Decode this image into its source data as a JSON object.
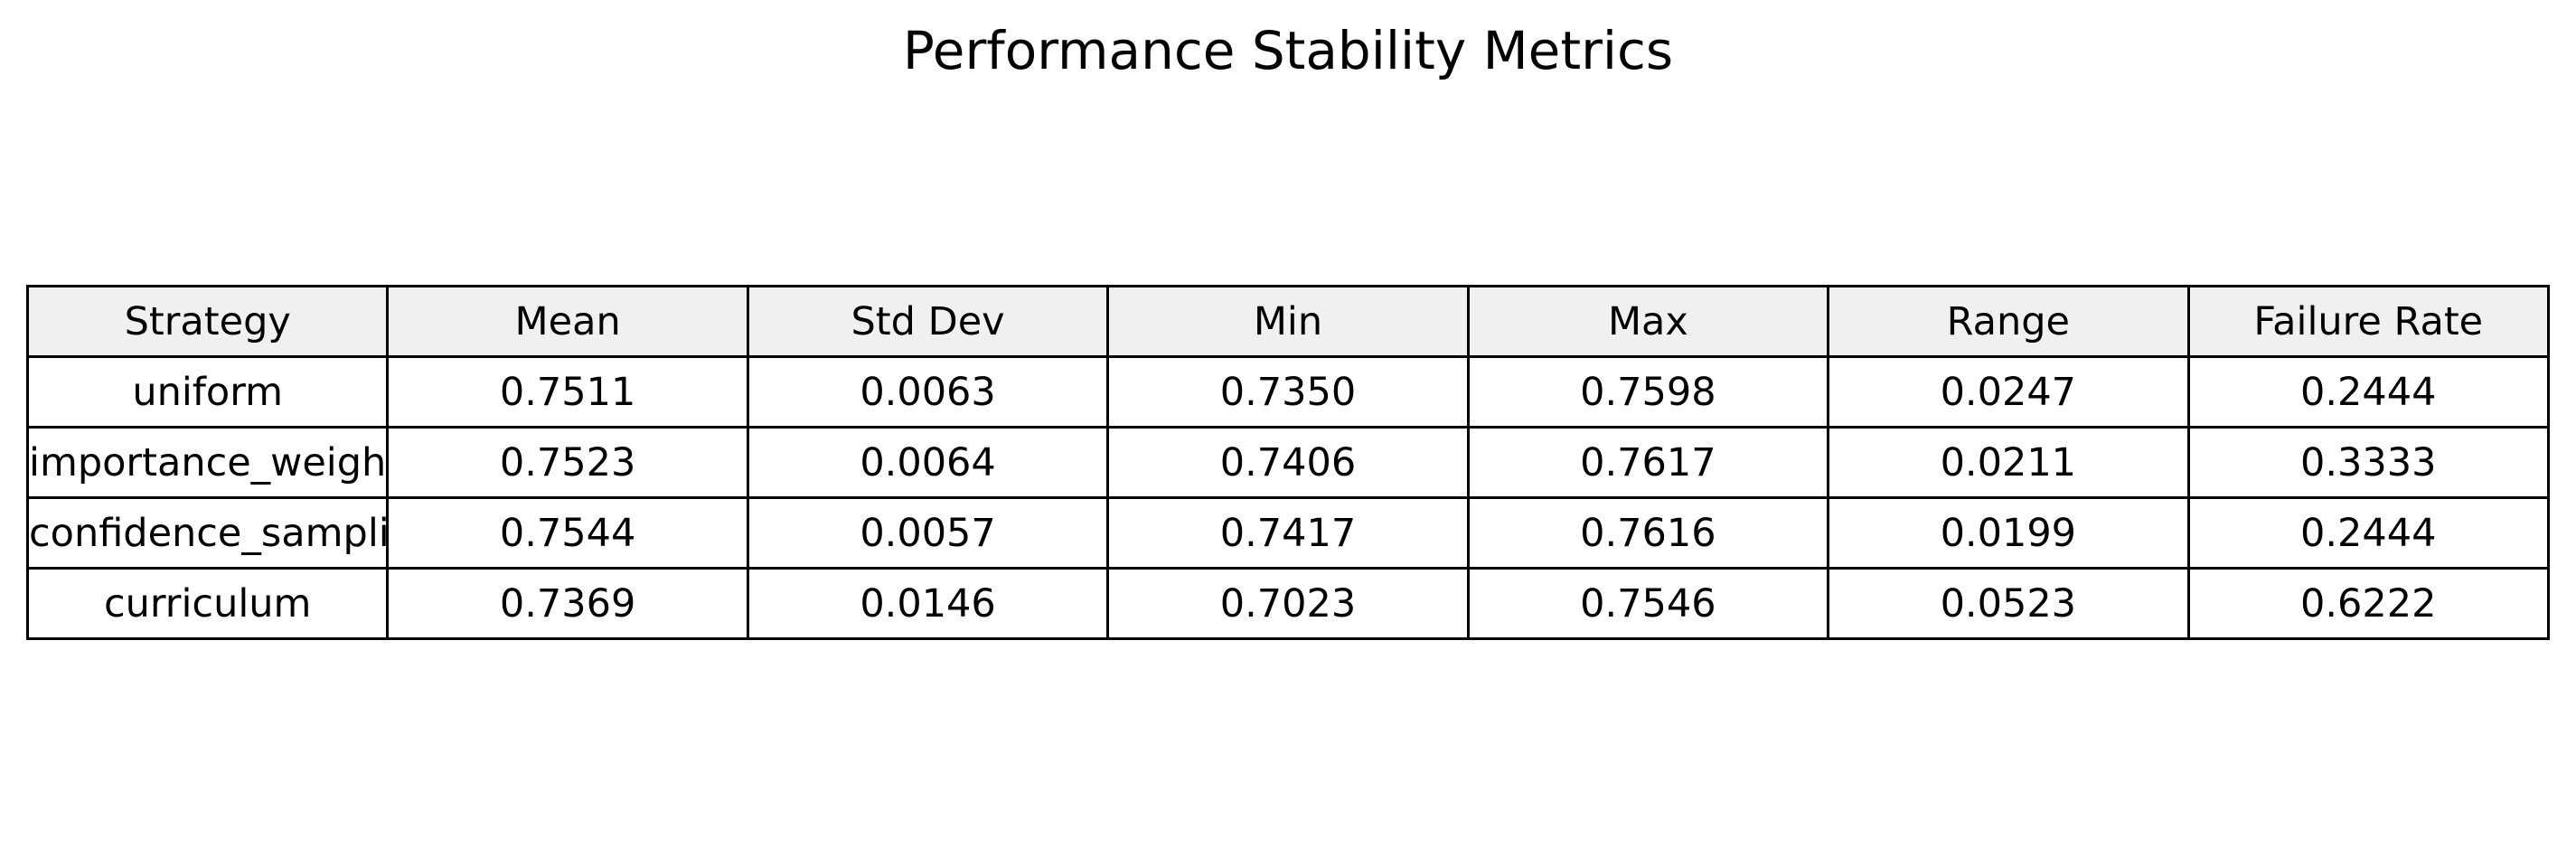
{
  "chart_data": {
    "type": "table",
    "title": "Performance Stability Metrics",
    "columns": [
      "Strategy",
      "Mean",
      "Std Dev",
      "Min",
      "Max",
      "Range",
      "Failure Rate"
    ],
    "rows": [
      [
        "uniform",
        "0.7511",
        "0.0063",
        "0.7350",
        "0.7598",
        "0.0247",
        "0.2444"
      ],
      [
        "importance_weighting",
        "0.7523",
        "0.0064",
        "0.7406",
        "0.7617",
        "0.0211",
        "0.3333"
      ],
      [
        "confidence_sampling",
        "0.7544",
        "0.0057",
        "0.7417",
        "0.7616",
        "0.0199",
        "0.2444"
      ],
      [
        "curriculum",
        "0.7369",
        "0.0146",
        "0.7023",
        "0.7546",
        "0.0523",
        "0.6222"
      ]
    ],
    "header_color": "#f0f0f0",
    "cell_color": "#ffffff",
    "border_color": "#000000"
  }
}
